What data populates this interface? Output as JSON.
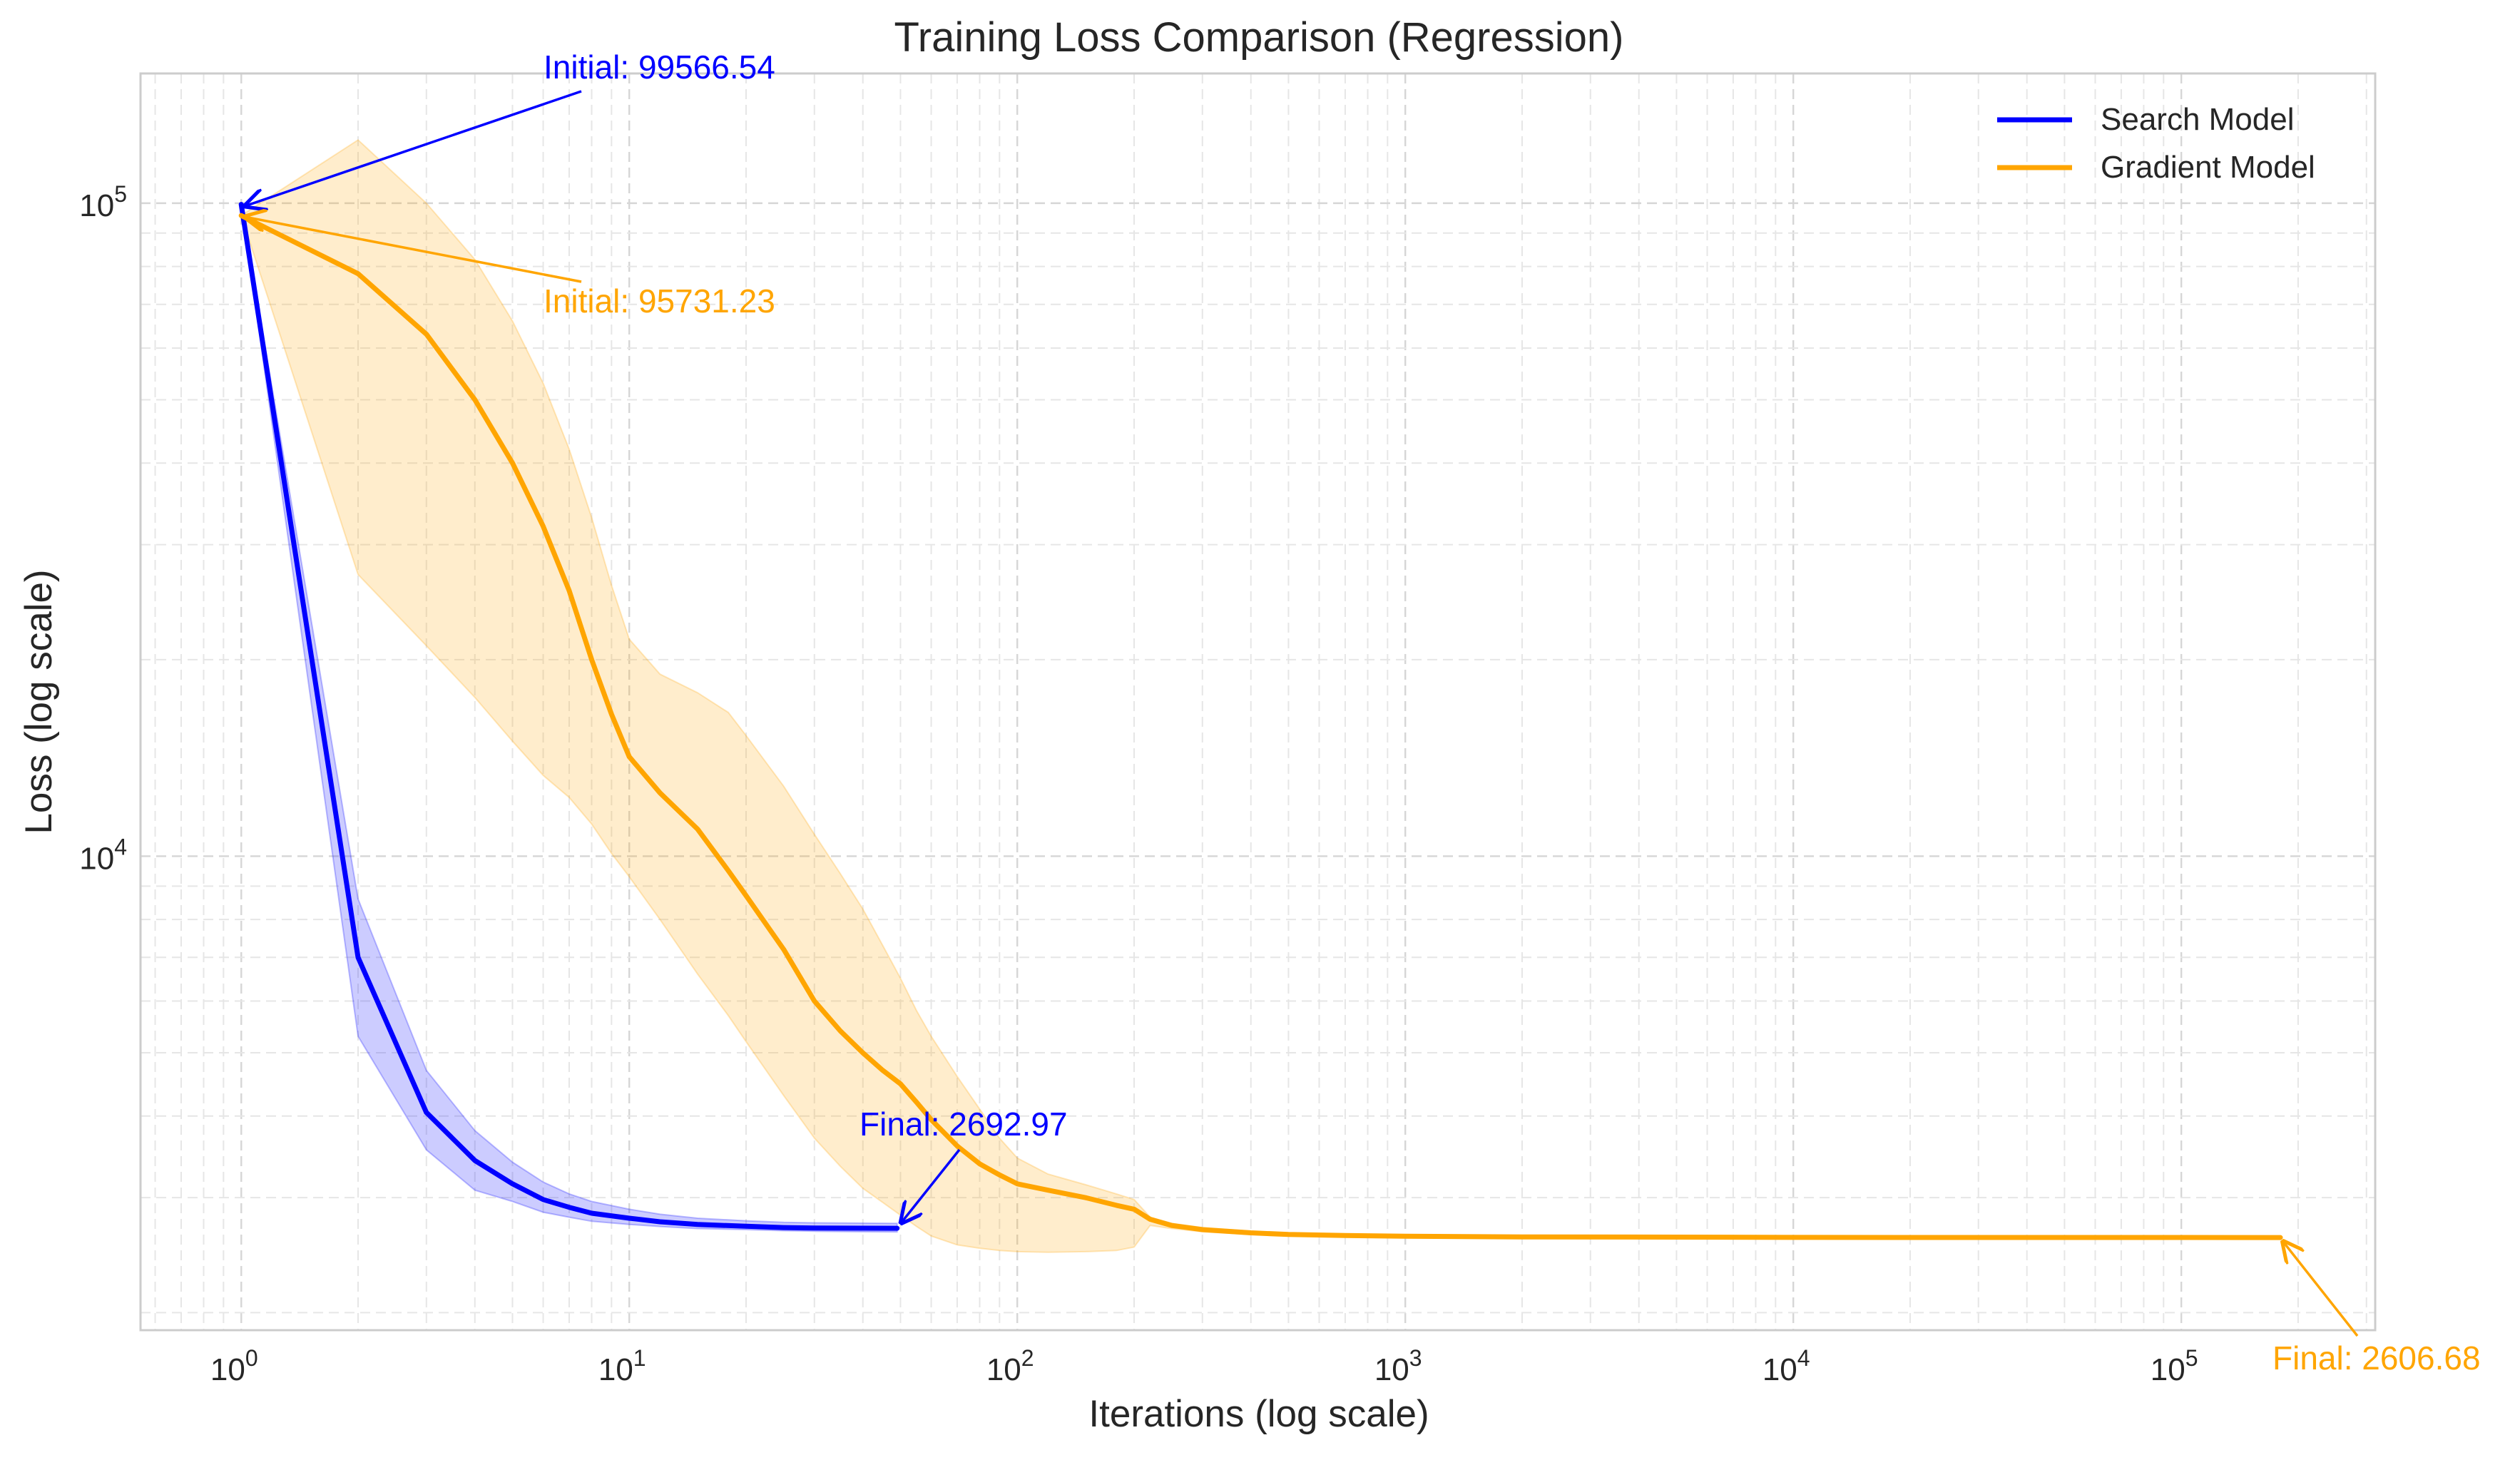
{
  "chart_data": {
    "type": "line",
    "title": "Training Loss Comparison (Regression)",
    "xlabel": "Iterations (log scale)",
    "ylabel": "Loss (log scale)",
    "xscale": "log",
    "yscale": "log",
    "xlim": [
      0.55,
      316000
    ],
    "ylim": [
      1880,
      158000
    ],
    "grid": true,
    "grid_style": "dashed",
    "legend_position": "top-right",
    "x_ticks": [
      {
        "value": 1,
        "label": "10",
        "exp": "0"
      },
      {
        "value": 10,
        "label": "10",
        "exp": "1"
      },
      {
        "value": 100,
        "label": "10",
        "exp": "2"
      },
      {
        "value": 1000,
        "label": "10",
        "exp": "3"
      },
      {
        "value": 10000,
        "label": "10",
        "exp": "4"
      },
      {
        "value": 100000,
        "label": "10",
        "exp": "5"
      }
    ],
    "y_ticks": [
      {
        "value": 10000,
        "label": "10",
        "exp": "4"
      },
      {
        "value": 100000,
        "label": "10",
        "exp": "5"
      }
    ],
    "series": [
      {
        "name": "Search Model",
        "color": "#0000ff",
        "band_color": "#0000ff",
        "x": [
          1,
          2,
          3,
          4,
          5,
          6,
          7,
          8,
          10,
          12,
          15,
          20,
          25,
          30,
          40,
          49
        ],
        "y": [
          99566.54,
          7000,
          4050,
          3420,
          3150,
          2980,
          2900,
          2840,
          2790,
          2755,
          2730,
          2712,
          2700,
          2696,
          2694,
          2692.97
        ],
        "upper": [
          99566.54,
          8600,
          4700,
          3800,
          3400,
          3170,
          3040,
          2960,
          2880,
          2830,
          2790,
          2765,
          2750,
          2745,
          2742,
          2740
        ],
        "lower": [
          99566.54,
          5300,
          3550,
          3080,
          2960,
          2850,
          2800,
          2760,
          2730,
          2710,
          2690,
          2680,
          2670,
          2665,
          2660,
          2658
        ]
      },
      {
        "name": "Gradient Model",
        "color": "#ffa500",
        "band_color": "#ffa500",
        "x": [
          1,
          2,
          3,
          4,
          5,
          6,
          7,
          8,
          9,
          10,
          12,
          15,
          18,
          20,
          25,
          30,
          35,
          40,
          45,
          50,
          55,
          60,
          70,
          80,
          90,
          100,
          120,
          150,
          180,
          200,
          220,
          250,
          300,
          400,
          500,
          700,
          1000,
          2000,
          5000,
          10000,
          50000,
          100000,
          180000
        ],
        "y": [
          95731.23,
          78000,
          63000,
          50000,
          40000,
          32000,
          25500,
          20000,
          16500,
          14200,
          12500,
          11000,
          9500,
          8700,
          7200,
          6000,
          5400,
          5000,
          4700,
          4480,
          4200,
          3950,
          3600,
          3380,
          3250,
          3150,
          3080,
          3000,
          2920,
          2880,
          2780,
          2720,
          2680,
          2650,
          2635,
          2625,
          2618,
          2612,
          2610,
          2608,
          2607,
          2607,
          2606.68
        ],
        "upper": [
          95731.23,
          125000,
          100000,
          82000,
          66000,
          53000,
          42000,
          33000,
          26000,
          21500,
          19000,
          17800,
          16600,
          15300,
          12800,
          10800,
          9400,
          8300,
          7300,
          6500,
          5800,
          5300,
          4600,
          4100,
          3700,
          3450,
          3260,
          3140,
          3040,
          2980,
          2800,
          2740,
          2700,
          2665,
          2648,
          2636,
          2628,
          2620,
          2616,
          2614,
          2612,
          2611,
          2610
        ],
        "lower": [
          95731.23,
          27000,
          21000,
          17500,
          15000,
          13300,
          12300,
          11200,
          10100,
          9300,
          8000,
          6600,
          5700,
          5200,
          4300,
          3700,
          3350,
          3100,
          2950,
          2820,
          2710,
          2620,
          2540,
          2510,
          2490,
          2480,
          2475,
          2480,
          2490,
          2520,
          2720,
          2690,
          2660,
          2635,
          2622,
          2614,
          2608,
          2604,
          2603,
          2603,
          2603,
          2603,
          2603
        ]
      }
    ],
    "annotations": [
      {
        "text": "Initial: 99566.54",
        "color": "#0000ff",
        "point": [
          1,
          99566.54
        ],
        "text_anchor": "top-right-of-point"
      },
      {
        "text": "Initial: 95731.23",
        "color": "#ffa500",
        "point": [
          1,
          95731.23
        ],
        "text_anchor": "below-right-of-point"
      },
      {
        "text": "Final: 2692.97",
        "color": "#0000ff",
        "point": [
          49,
          2692.97
        ],
        "text_anchor": "above-point"
      },
      {
        "text": "Final: 2606.68",
        "color": "#ffa500",
        "point": [
          180000,
          2606.68
        ],
        "text_anchor": "below-right-of-point"
      }
    ]
  }
}
